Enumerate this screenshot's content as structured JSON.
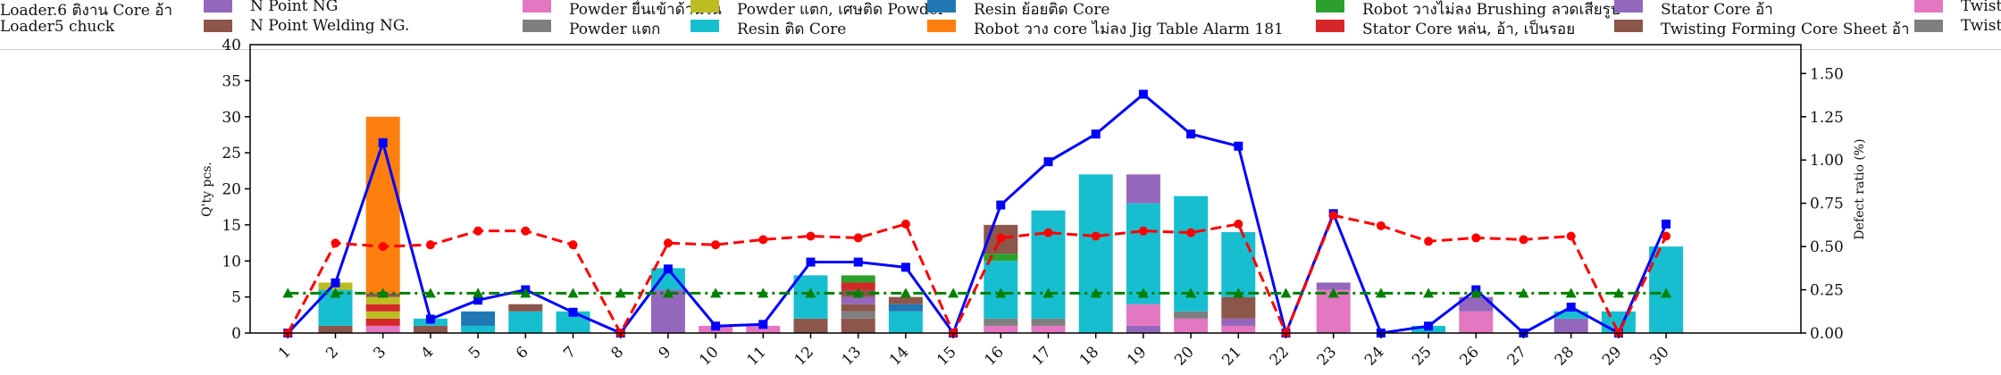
{
  "legend": {
    "left_labels": [
      "Loader.6 ติงาน Core อ้า",
      "Loader5 chuck"
    ],
    "series_entries": [
      {
        "label": "N Point NG",
        "color": "#9467bd"
      },
      {
        "label": "N Point Welding NG.",
        "color": "#8c564b"
      },
      {
        "label": "Powder ยื่นเข้าด้านใน",
        "color": "#e377c2"
      },
      {
        "label": "Powder แตก",
        "color": "#7f7f7f"
      },
      {
        "label": "Powder แตก, เศษติด Powder",
        "color": "#bcbd22"
      },
      {
        "label": "Resin ติด Core",
        "color": "#17becf"
      },
      {
        "label": "Resin ย้อยติด Core",
        "color": "#1f77b4"
      },
      {
        "label": "Robot วาง core ไม่ลง Jig Table Alarm 181",
        "color": "#ff7f0e"
      },
      {
        "label": "Robot วางไม่ลง Brushing ลวดเสียรูป",
        "color": "#2ca02c"
      },
      {
        "label": "Stator Core หล่น, อ้า, เป็นรอย",
        "color": "#d62728"
      },
      {
        "label": "Stator Core อ้า",
        "color": "#9467bd"
      },
      {
        "label": "Twisting Forming Core Sheet อ้า",
        "color": "#8c564b"
      },
      {
        "label": "Twist",
        "color": "#e377c2"
      },
      {
        "label": "Twist",
        "color": "#7f7f7f"
      }
    ]
  },
  "chart_data": {
    "type": "bar",
    "stacked": true,
    "categories": [
      "1",
      "2",
      "3",
      "4",
      "5",
      "6",
      "7",
      "8",
      "9",
      "10",
      "11",
      "12",
      "13",
      "14",
      "15",
      "16",
      "17",
      "18",
      "19",
      "20",
      "21",
      "22",
      "23",
      "24",
      "25",
      "26",
      "27",
      "28",
      "29",
      "30"
    ],
    "ylabel": "Q'ty pcs.",
    "y2label": "Defect ratio (%)",
    "ylim": [
      0,
      40
    ],
    "y2lim": [
      0,
      1.6667
    ],
    "yticks": [
      0,
      5,
      10,
      15,
      20,
      25,
      30,
      35
    ],
    "y2ticks": [
      0.0,
      0.25,
      0.5,
      0.75,
      1.0,
      1.25,
      1.5
    ],
    "y2tick_labels": [
      "0.00",
      "0.25",
      "0.50",
      "0.75",
      "1.00",
      "1.25",
      "1.50"
    ],
    "top_tick_partial": "40",
    "stacks": [
      [],
      [
        {
          "c": "#8c564b",
          "v": 1
        },
        {
          "c": "#17becf",
          "v": 5
        },
        {
          "c": "#bcbd22",
          "v": 1
        }
      ],
      [
        {
          "c": "#e377c2",
          "v": 1
        },
        {
          "c": "#d62728",
          "v": 1
        },
        {
          "c": "#bcbd22",
          "v": 1
        },
        {
          "c": "#d62728",
          "v": 1
        },
        {
          "c": "#bcbd22",
          "v": 1
        },
        {
          "c": "#8c564b",
          "v": 0.5
        },
        {
          "c": "#ff7f0e",
          "v": 24.5
        }
      ],
      [
        {
          "c": "#8c564b",
          "v": 1
        },
        {
          "c": "#17becf",
          "v": 1
        }
      ],
      [
        {
          "c": "#17becf",
          "v": 1
        },
        {
          "c": "#1f77b4",
          "v": 2
        }
      ],
      [
        {
          "c": "#17becf",
          "v": 3
        },
        {
          "c": "#8c564b",
          "v": 1
        }
      ],
      [
        {
          "c": "#17becf",
          "v": 3
        }
      ],
      [],
      [
        {
          "c": "#9467bd",
          "v": 6
        },
        {
          "c": "#17becf",
          "v": 3
        }
      ],
      [
        {
          "c": "#e377c2",
          "v": 1
        }
      ],
      [
        {
          "c": "#e377c2",
          "v": 1
        }
      ],
      [
        {
          "c": "#8c564b",
          "v": 2
        },
        {
          "c": "#17becf",
          "v": 6
        }
      ],
      [
        {
          "c": "#8c564b",
          "v": 2
        },
        {
          "c": "#7f7f7f",
          "v": 1
        },
        {
          "c": "#8c564b",
          "v": 1
        },
        {
          "c": "#9467bd",
          "v": 1
        },
        {
          "c": "#8c564b",
          "v": 1
        },
        {
          "c": "#d62728",
          "v": 1
        },
        {
          "c": "#2ca02c",
          "v": 1
        }
      ],
      [
        {
          "c": "#17becf",
          "v": 3
        },
        {
          "c": "#1f77b4",
          "v": 1
        },
        {
          "c": "#8c564b",
          "v": 1
        }
      ],
      [],
      [
        {
          "c": "#e377c2",
          "v": 1
        },
        {
          "c": "#7f7f7f",
          "v": 1
        },
        {
          "c": "#17becf",
          "v": 8
        },
        {
          "c": "#2ca02c",
          "v": 1
        },
        {
          "c": "#8c564b",
          "v": 4
        }
      ],
      [
        {
          "c": "#e377c2",
          "v": 1
        },
        {
          "c": "#7f7f7f",
          "v": 1
        },
        {
          "c": "#17becf",
          "v": 15
        }
      ],
      [
        {
          "c": "#17becf",
          "v": 22
        }
      ],
      [
        {
          "c": "#9467bd",
          "v": 1
        },
        {
          "c": "#e377c2",
          "v": 3
        },
        {
          "c": "#17becf",
          "v": 14
        },
        {
          "c": "#9467bd",
          "v": 4
        }
      ],
      [
        {
          "c": "#e377c2",
          "v": 2
        },
        {
          "c": "#7f7f7f",
          "v": 1
        },
        {
          "c": "#17becf",
          "v": 16
        }
      ],
      [
        {
          "c": "#e377c2",
          "v": 1
        },
        {
          "c": "#9467bd",
          "v": 1
        },
        {
          "c": "#8c564b",
          "v": 3
        },
        {
          "c": "#17becf",
          "v": 9
        }
      ],
      [],
      [
        {
          "c": "#e377c2",
          "v": 6
        },
        {
          "c": "#9467bd",
          "v": 1
        }
      ],
      [],
      [
        {
          "c": "#17becf",
          "v": 1
        }
      ],
      [
        {
          "c": "#e377c2",
          "v": 3
        },
        {
          "c": "#9467bd",
          "v": 2
        }
      ],
      [],
      [
        {
          "c": "#9467bd",
          "v": 2
        },
        {
          "c": "#17becf",
          "v": 1
        }
      ],
      [
        {
          "c": "#17becf",
          "v": 3
        }
      ],
      [
        {
          "c": "#17becf",
          "v": 12
        }
      ]
    ],
    "lines": [
      {
        "color": "#0000ff",
        "style": "solid",
        "marker": "square",
        "axis": "right",
        "values": [
          0.0,
          0.29,
          1.1,
          0.08,
          0.19,
          0.25,
          0.12,
          0.0,
          0.37,
          0.04,
          0.05,
          0.41,
          0.41,
          0.38,
          0.0,
          0.74,
          0.99,
          1.15,
          1.38,
          1.15,
          1.08,
          0.0,
          0.69,
          0.0,
          0.04,
          0.25,
          0.0,
          0.15,
          0.0,
          0.63
        ]
      },
      {
        "color": "#ff0000",
        "style": "dashed",
        "marker": "circle",
        "axis": "right",
        "values": [
          0.0,
          0.52,
          0.5,
          0.51,
          0.59,
          0.59,
          0.51,
          0.0,
          0.52,
          0.51,
          0.54,
          0.56,
          0.55,
          0.63,
          0.0,
          0.55,
          0.58,
          0.56,
          0.59,
          0.58,
          0.63,
          0.0,
          0.68,
          0.62,
          0.53,
          0.55,
          0.54,
          0.56,
          0.0,
          0.56
        ]
      },
      {
        "color": "#008000",
        "style": "dashdot",
        "marker": "triangle",
        "axis": "right",
        "values": [
          0.23,
          0.23,
          0.23,
          0.23,
          0.23,
          0.23,
          0.23,
          0.23,
          0.23,
          0.23,
          0.23,
          0.23,
          0.23,
          0.23,
          0.23,
          0.23,
          0.23,
          0.23,
          0.23,
          0.23,
          0.23,
          0.23,
          0.23,
          0.23,
          0.23,
          0.23,
          0.23,
          0.23,
          0.23,
          0.23
        ]
      }
    ],
    "grid": false
  }
}
